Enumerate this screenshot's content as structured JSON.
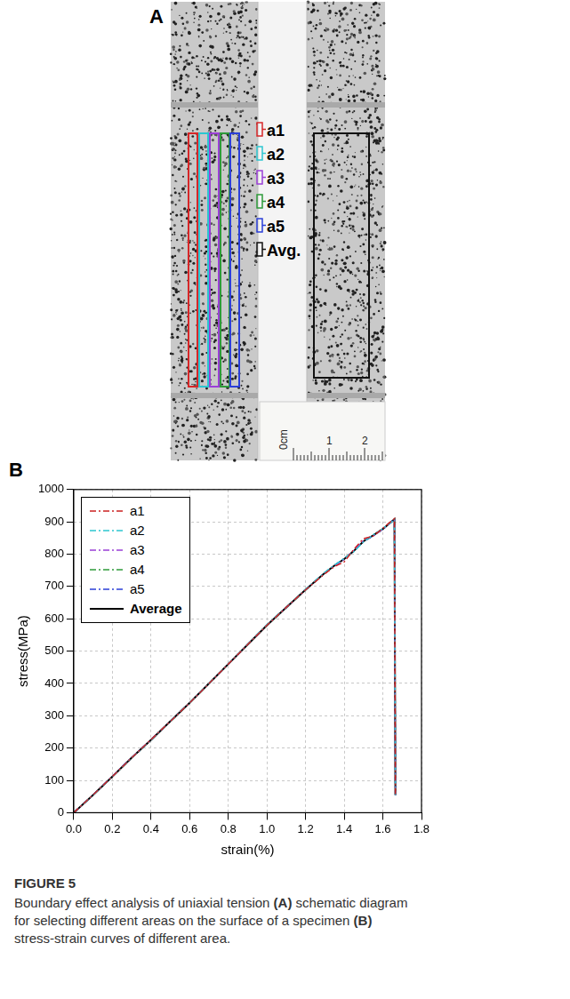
{
  "panel_a": {
    "letter": "A",
    "legend": [
      {
        "label": "a1",
        "color": "#d62728"
      },
      {
        "label": "a2",
        "color": "#2cc6d0"
      },
      {
        "label": "a3",
        "color": "#9b3fd6"
      },
      {
        "label": "a4",
        "color": "#2e9a3a"
      },
      {
        "label": "a5",
        "color": "#2b3fd8"
      },
      {
        "label": "Avg.",
        "color": "#111111"
      }
    ],
    "ruler": [
      "0cm",
      "1",
      "2"
    ]
  },
  "panel_b": {
    "letter": "B"
  },
  "chart_data": {
    "type": "line",
    "xlabel": "strain(%)",
    "ylabel": "stress(MPa)",
    "x": [
      0,
      0.1,
      0.2,
      0.3,
      0.4,
      0.5,
      0.6,
      0.7,
      0.8,
      0.9,
      1.0,
      1.1,
      1.2,
      1.3,
      1.35,
      1.4,
      1.45,
      1.5,
      1.55,
      1.6,
      1.66,
      1.665
    ],
    "xlim": [
      0,
      1.8
    ],
    "xticks": [
      {
        "value": 0,
        "label": "0.0"
      },
      0.2,
      0.4,
      0.6,
      0.8,
      {
        "value": 1,
        "label": "1.0"
      },
      1.2,
      1.4,
      1.6,
      1.8
    ],
    "ylim": [
      0,
      1000
    ],
    "yticks": [
      0,
      100,
      200,
      300,
      400,
      500,
      600,
      700,
      800,
      900,
      1000
    ],
    "grid": true,
    "legend": "upper left",
    "series": [
      {
        "name": "a1",
        "color": "#cc2222",
        "line_style": "dashdot",
        "values": [
          0,
          55,
          112,
          170,
          226,
          283,
          340,
          400,
          460,
          520,
          580,
          636,
          690,
          740,
          762,
          776,
          815,
          848,
          856,
          880,
          910,
          55
        ]
      },
      {
        "name": "a2",
        "color": "#2cc6d0",
        "line_style": "dashdot",
        "values": [
          0,
          54,
          111,
          170,
          225,
          284,
          341,
          401,
          461,
          521,
          582,
          637,
          692,
          744,
          766,
          787,
          808,
          838,
          860,
          879,
          906,
          55
        ]
      },
      {
        "name": "a3",
        "color": "#9b3fd6",
        "line_style": "dashdot",
        "values": [
          0,
          55,
          112,
          171,
          226,
          283,
          340,
          400,
          460,
          520,
          580,
          635,
          690,
          742,
          764,
          784,
          812,
          842,
          858,
          877,
          907,
          55
        ]
      },
      {
        "name": "a4",
        "color": "#2e9a3a",
        "line_style": "dashdot",
        "values": [
          0,
          55,
          112,
          170,
          225,
          282,
          339,
          399,
          459,
          519,
          579,
          634,
          689,
          741,
          765,
          786,
          810,
          840,
          859,
          878,
          908,
          55
        ]
      },
      {
        "name": "a5",
        "color": "#2b3fd8",
        "line_style": "dashdot",
        "values": [
          0,
          55,
          113,
          170,
          225,
          283,
          340,
          400,
          460,
          520,
          580,
          635,
          690,
          742,
          766,
          786,
          809,
          839,
          857,
          878,
          909,
          55
        ]
      },
      {
        "name": "Average",
        "color": "#000000",
        "line_style": "solid",
        "values": [
          0,
          55,
          112,
          170,
          225,
          283,
          340,
          400,
          460,
          520,
          580,
          635,
          690,
          742,
          765,
          785,
          810,
          840,
          858,
          878,
          908,
          55
        ]
      }
    ]
  },
  "caption": {
    "label": "FIGURE 5",
    "text": "Boundary effect analysis of uniaxial tension (A) schematic diagram for selecting different areas on the surface of a specimen (B) stress-strain curves of different area."
  }
}
